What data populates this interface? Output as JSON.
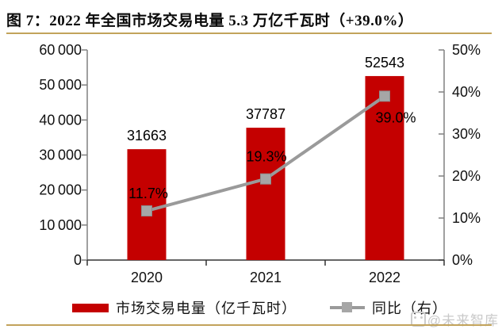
{
  "title": "图 7：2022 年全国市场交易电量 5.3 万亿千瓦时（+39.0%）",
  "watermark": {
    "text": "@未来智库",
    "logo": "panda-face-icon"
  },
  "colors": {
    "bar": "#C40000",
    "line": "#9A9A9A",
    "marker_fill": "#A6A6A6",
    "marker_stroke": "#8C8C8C",
    "gold_rule": "#C2A35B",
    "side_axis": "#808080",
    "x_axis": "#333333",
    "label_text": "#000000",
    "watermark_text": "#CCCCCC"
  },
  "chart_data": {
    "type": "bar",
    "subtype": "combo: bars on left axis + line with square markers on right axis",
    "title": "2022 年全国市场交易电量 5.3 万亿千瓦时（+39.0%）",
    "categories": [
      "2020",
      "2021",
      "2022"
    ],
    "series": [
      {
        "name": "市场交易电量（亿千瓦时）",
        "type": "bar",
        "axis": "left",
        "values": [
          31663,
          37787,
          52543
        ],
        "labels": [
          "31663",
          "37787",
          "52543"
        ],
        "color": "#C40000"
      },
      {
        "name": "同比（右）",
        "type": "line",
        "axis": "right",
        "values": [
          11.7,
          19.3,
          39.0
        ],
        "labels": [
          "11.7%",
          "19.3%",
          "39.0%"
        ],
        "color": "#9A9A9A"
      }
    ],
    "left_axis": {
      "min": 0,
      "max": 60000,
      "step": 10000,
      "tick_labels": [
        "0",
        "10 000",
        "20 000",
        "30 000",
        "40 000",
        "50 000",
        "60 000"
      ]
    },
    "right_axis": {
      "min": 0,
      "max": 50,
      "step": 10,
      "tick_labels": [
        "0%",
        "10%",
        "20%",
        "30%",
        "40%",
        "50%"
      ]
    },
    "grid": false,
    "legend_position": "bottom"
  }
}
